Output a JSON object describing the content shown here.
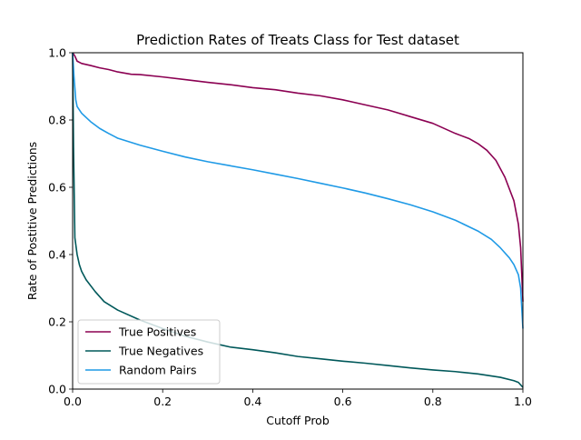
{
  "chart_data": {
    "type": "line",
    "title": "Prediction Rates of Treats Class for Test dataset",
    "xlabel": "Cutoff Prob",
    "ylabel": "Rate of Postitive Predictions",
    "xlim": [
      0.0,
      1.0
    ],
    "ylim": [
      0.0,
      1.0
    ],
    "xticks": [
      "0.0",
      "0.2",
      "0.4",
      "0.6",
      "0.8",
      "1.0"
    ],
    "yticks": [
      "0.0",
      "0.2",
      "0.4",
      "0.6",
      "0.8",
      "1.0"
    ],
    "grid": false,
    "legend_position": "lower-left",
    "series": [
      {
        "name": "True Positives",
        "color": "#8b0052",
        "x": [
          0.0,
          0.005,
          0.01,
          0.02,
          0.04,
          0.06,
          0.08,
          0.1,
          0.13,
          0.15,
          0.2,
          0.25,
          0.3,
          0.35,
          0.4,
          0.45,
          0.5,
          0.55,
          0.6,
          0.65,
          0.7,
          0.75,
          0.8,
          0.85,
          0.88,
          0.9,
          0.92,
          0.94,
          0.96,
          0.98,
          0.99,
          0.995,
          1.0
        ],
        "y": [
          1.0,
          0.99,
          0.975,
          0.968,
          0.962,
          0.955,
          0.95,
          0.943,
          0.936,
          0.935,
          0.928,
          0.92,
          0.912,
          0.905,
          0.896,
          0.89,
          0.88,
          0.872,
          0.86,
          0.845,
          0.83,
          0.81,
          0.79,
          0.76,
          0.745,
          0.73,
          0.71,
          0.68,
          0.63,
          0.56,
          0.49,
          0.42,
          0.26
        ]
      },
      {
        "name": "True Negatives",
        "color": "#00585a",
        "x": [
          0.0,
          0.002,
          0.005,
          0.01,
          0.015,
          0.02,
          0.03,
          0.05,
          0.07,
          0.1,
          0.15,
          0.2,
          0.25,
          0.3,
          0.35,
          0.4,
          0.45,
          0.5,
          0.55,
          0.6,
          0.65,
          0.7,
          0.75,
          0.8,
          0.85,
          0.9,
          0.95,
          0.98,
          0.99,
          1.0
        ],
        "y": [
          1.0,
          0.72,
          0.45,
          0.4,
          0.37,
          0.35,
          0.325,
          0.29,
          0.26,
          0.235,
          0.205,
          0.18,
          0.157,
          0.14,
          0.125,
          0.117,
          0.108,
          0.097,
          0.09,
          0.083,
          0.077,
          0.07,
          0.063,
          0.057,
          0.052,
          0.045,
          0.035,
          0.025,
          0.02,
          0.005
        ]
      },
      {
        "name": "Random Pairs",
        "color": "#1f9ae6",
        "x": [
          0.0,
          0.003,
          0.007,
          0.01,
          0.02,
          0.04,
          0.06,
          0.08,
          0.1,
          0.15,
          0.2,
          0.25,
          0.3,
          0.35,
          0.4,
          0.45,
          0.5,
          0.55,
          0.6,
          0.65,
          0.7,
          0.75,
          0.8,
          0.85,
          0.9,
          0.93,
          0.95,
          0.97,
          0.98,
          0.99,
          0.995,
          1.0
        ],
        "y": [
          1.0,
          0.93,
          0.86,
          0.84,
          0.82,
          0.795,
          0.775,
          0.76,
          0.746,
          0.725,
          0.707,
          0.69,
          0.676,
          0.664,
          0.652,
          0.639,
          0.626,
          0.612,
          0.598,
          0.583,
          0.566,
          0.548,
          0.527,
          0.502,
          0.47,
          0.445,
          0.42,
          0.39,
          0.37,
          0.34,
          0.3,
          0.18
        ]
      }
    ]
  }
}
